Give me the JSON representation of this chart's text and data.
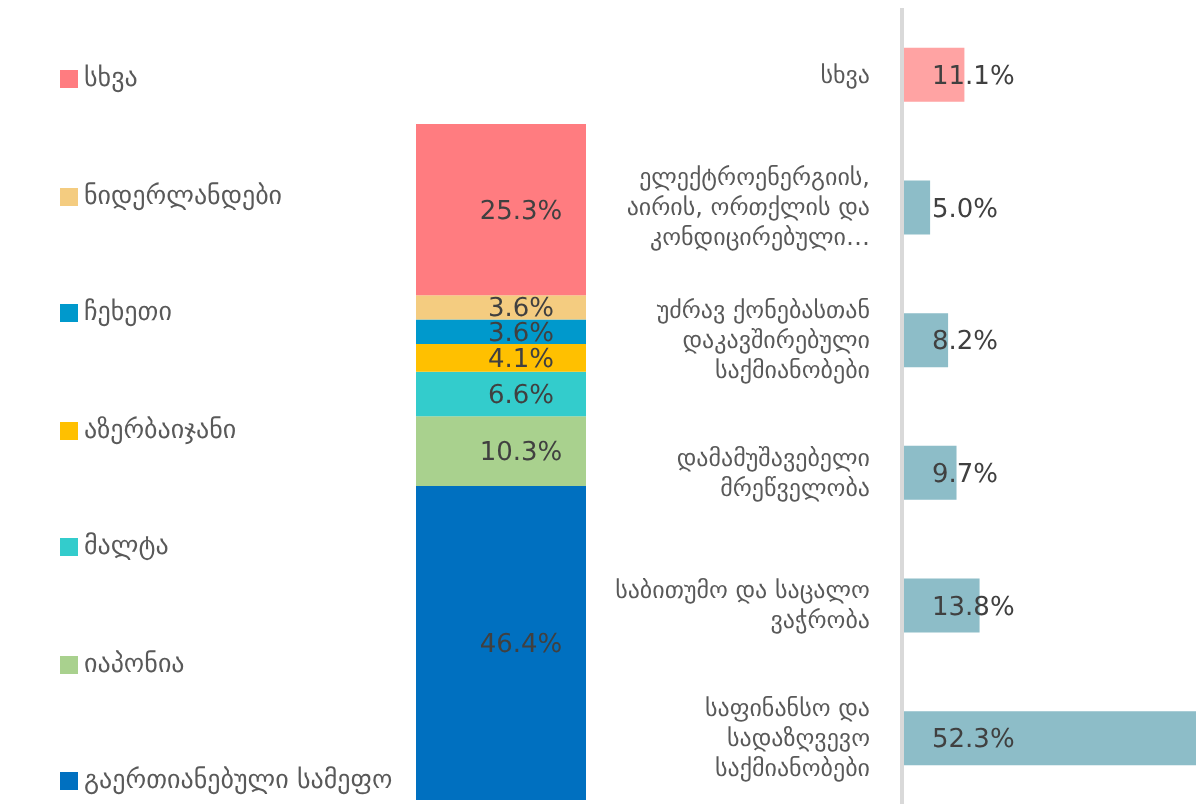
{
  "chart_data": [
    {
      "type": "bar",
      "stacked": true,
      "legend": "left",
      "categories": [
        null
      ],
      "series": [
        {
          "name": "გაერთიანებული სამეფო",
          "color": "#0070c0",
          "values": [
            46.4
          ],
          "value_labels": [
            "46.4%"
          ]
        },
        {
          "name": "იაპონია",
          "color": "#a9d18e",
          "values": [
            10.3
          ],
          "value_labels": [
            "10.3%"
          ]
        },
        {
          "name": "მალტა",
          "color": "#33cccc",
          "values": [
            6.6
          ],
          "value_labels": [
            "6.6%"
          ]
        },
        {
          "name": "აზერბაიჯანი",
          "color": "#ffc000",
          "values": [
            4.1
          ],
          "value_labels": [
            "4.1%"
          ]
        },
        {
          "name": "ჩეხეთი",
          "color": "#0099cc",
          "values": [
            3.6
          ],
          "value_labels": [
            "3.6%"
          ]
        },
        {
          "name": "ნიდერლანდები",
          "color": "#f4cc80",
          "values": [
            3.6
          ],
          "value_labels": [
            "3.6%"
          ]
        },
        {
          "name": "სხვა",
          "color": "#ff7c80",
          "values": [
            25.3
          ],
          "value_labels": [
            "25.3%"
          ]
        }
      ]
    },
    {
      "type": "bar",
      "orientation": "horizontal",
      "categories": [
        "სხვა",
        "ელექტროენერგიის, აირის, ორთქლის და კონდიცირებული…",
        "უძრავ ქონებასთან დაკავშირებული საქმიანობები",
        "დამამუშავებელი მრეწველობა",
        "საბითუმო და საცალო ვაჭრობა",
        "საფინანსო და სადაზღვევო საქმიანობები"
      ],
      "values": [
        11.1,
        5.0,
        8.2,
        9.7,
        13.8,
        52.3
      ],
      "colors": [
        "#ffa3a3",
        "#8dbdc8",
        "#8dbdc8",
        "#8dbdc8",
        "#8dbdc8",
        "#8dbdc8"
      ],
      "value_labels": [
        "11.1%",
        "5.0%",
        "8.2%",
        "9.7%",
        "13.8%",
        "52.3%"
      ]
    }
  ]
}
